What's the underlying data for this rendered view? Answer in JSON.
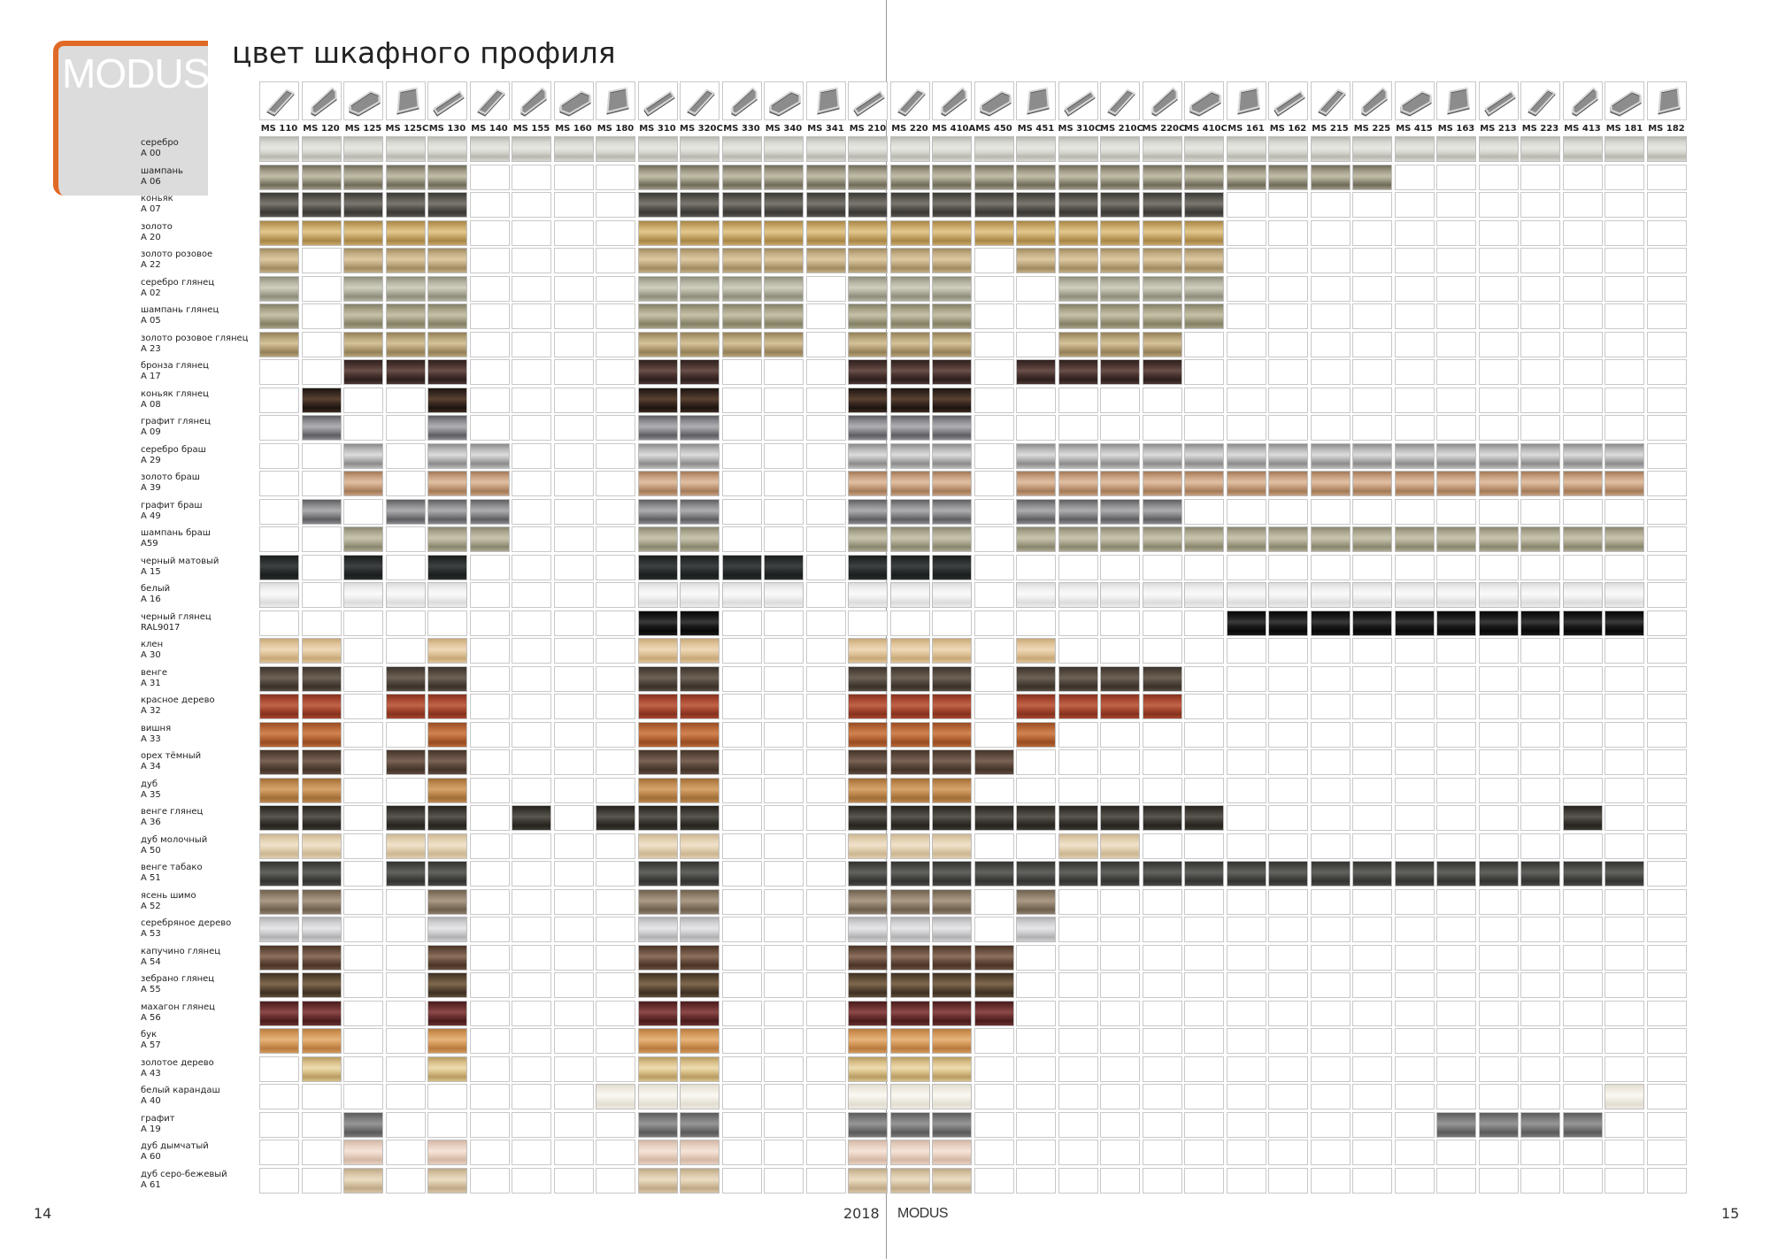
{
  "brand": {
    "logo_text": "MODUS",
    "accent_color": "#e06a25"
  },
  "title": "цвет шкафного профиля",
  "footer": {
    "page_left": "14",
    "page_right": "15",
    "year": "2018",
    "brand": "MODUS"
  },
  "profiles": [
    "MS 110",
    "MS 120",
    "MS 125",
    "MS 125C",
    "MS 130",
    "MS 140",
    "MS 155",
    "MS 160",
    "MS 180",
    "MS 310",
    "MS 320C",
    "MS 330",
    "MS 340",
    "MS 341",
    "MS 210",
    "MS 220",
    "MS 410A",
    "MS 450",
    "MS 451",
    "MS 310C",
    "MS 210C",
    "MS 220C",
    "MS 410C",
    "MS 161",
    "MS 162",
    "MS 215",
    "MS 225",
    "MS 415",
    "MS 163",
    "MS 213",
    "MS 223",
    "MS 413",
    "MS 181",
    "MS 182"
  ],
  "finishes": [
    {
      "name": "серебро",
      "code": "A 00",
      "swatch": [
        "#d8d8d2",
        "#b8b8b0",
        "#e8e8e2"
      ],
      "avail": "1111111111111111111111111111111111"
    },
    {
      "name": "шампань",
      "code": "A 06",
      "swatch": [
        "#9e9a86",
        "#6e6a58",
        "#c2bea8"
      ],
      "avail": "1111100001111111111111111110000000"
    },
    {
      "name": "коньяк",
      "code": "A 07",
      "swatch": [
        "#5a5650",
        "#3a3834",
        "#7a7670"
      ],
      "avail": "1111100001111111111111100000000000"
    },
    {
      "name": "золото",
      "code": "A 20",
      "swatch": [
        "#c9a86a",
        "#a68646",
        "#e2c88e"
      ],
      "avail": "1111100001111111111111100000000000"
    },
    {
      "name": "золото розовое",
      "code": "A 22",
      "swatch": [
        "#c4ae84",
        "#a08a62",
        "#dcc8a2"
      ],
      "avail": "1011100001111111101111100000000000"
    },
    {
      "name": "серебро глянец",
      "code": "A 02",
      "swatch": [
        "#b4b2a0",
        "#8e8c7a",
        "#d0cebe"
      ],
      "avail": "1011100001111011100111100000000000"
    },
    {
      "name": "шампань глянец",
      "code": "A 05",
      "swatch": [
        "#a8a288",
        "#828066",
        "#c6c2a8"
      ],
      "avail": "1011100001111011100111100000000000"
    },
    {
      "name": "золото розовое глянец",
      "code": "A 23",
      "swatch": [
        "#b8a47a",
        "#948056",
        "#d4c29a"
      ],
      "avail": "1011100001111011100111000000000000"
    },
    {
      "name": "бронза глянец",
      "code": "A 17",
      "swatch": [
        "#4a3430",
        "#2e201e",
        "#6a504a"
      ],
      "avail": "0011100001100011101111000000000000"
    },
    {
      "name": "коньяк глянец",
      "code": "A 08",
      "swatch": [
        "#3a2a22",
        "#1e1410",
        "#5a4232"
      ],
      "avail": "0100100001100011100000000000000000"
    },
    {
      "name": "графит глянец",
      "code": "A 09",
      "swatch": [
        "#8c8c90",
        "#5c5c62",
        "#b0b0b4"
      ],
      "avail": "0100100001100011100000000000000000"
    },
    {
      "name": "серебро браш",
      "code": "A 29",
      "swatch": [
        "#b8b8b8",
        "#8a8a8a",
        "#dcdcdc"
      ],
      "avail": "0010110001100011101111111111111110"
    },
    {
      "name": "золото браш",
      "code": "A 39",
      "swatch": [
        "#c8a080",
        "#a27a58",
        "#e0c0a2"
      ],
      "avail": "0010110001100011101111111111111110"
    },
    {
      "name": "графит браш",
      "code": "A 49",
      "swatch": [
        "#8a8a8c",
        "#5e5e62",
        "#aeaeb0"
      ],
      "avail": "0101110001100011101111000000000000"
    },
    {
      "name": "шампань браш",
      "code": "A59",
      "swatch": [
        "#aeaa92",
        "#8a866e",
        "#c8c4ae"
      ],
      "avail": "0010110001100011101111111111111110"
    },
    {
      "name": "черный матовый",
      "code": "A 15",
      "swatch": [
        "#2a2e2e",
        "#1a1e1e",
        "#3e4242"
      ],
      "avail": "1010100001111011100000000000000000"
    },
    {
      "name": "белый",
      "code": "A 16",
      "swatch": [
        "#eeeeee",
        "#dcdcdc",
        "#fafafa"
      ],
      "avail": "1011100001111011101111111111111110"
    },
    {
      "name": "черный глянец",
      "code": "RAL9017",
      "swatch": [
        "#1a1a1a",
        "#080808",
        "#3a3a3a"
      ],
      "avail": "0000000001100000000000011111111110"
    },
    {
      "name": "клен",
      "code": "A 30",
      "swatch": [
        "#e0c49a",
        "#c8a878",
        "#eed8b6"
      ],
      "avail": "1100100001100011101000000000000000"
    },
    {
      "name": "венге",
      "code": "A 31",
      "swatch": [
        "#544a40",
        "#3a322a",
        "#6e6256"
      ],
      "avail": "1101100001100011101111000000000000"
    },
    {
      "name": "красное дерево",
      "code": "A 32",
      "swatch": [
        "#a84830",
        "#86321e",
        "#c0644a"
      ],
      "avail": "1101100001100011101111000000000000"
    },
    {
      "name": "вишня",
      "code": "A 33",
      "swatch": [
        "#b86838",
        "#984c22",
        "#d08452"
      ],
      "avail": "1100100001100011101000000000000000"
    },
    {
      "name": "орех тёмный",
      "code": "A 34",
      "swatch": [
        "#5e4a3e",
        "#443428",
        "#7a6456"
      ],
      "avail": "1101100001100011110000000000000000"
    },
    {
      "name": "дуб",
      "code": "A 35",
      "swatch": [
        "#c08a50",
        "#a06e38",
        "#d6a46c"
      ],
      "avail": "1100100001100011100000000000000000"
    },
    {
      "name": "венге глянец",
      "code": "A 36",
      "swatch": [
        "#3e3a34",
        "#26221e",
        "#5a5650"
      ],
      "avail": "1101101011100011111111100000000100"
    },
    {
      "name": "дуб молочный",
      "code": "A 50",
      "swatch": [
        "#e2cfb0",
        "#ccb692",
        "#f0e2ca"
      ],
      "avail": "1101100001100011100110000000000000"
    },
    {
      "name": "венге табако",
      "code": "A 51",
      "swatch": [
        "#4a4a46",
        "#323230",
        "#626260"
      ],
      "avail": "1101100001100011111111111111111110"
    },
    {
      "name": "ясень шимо",
      "code": "A 52",
      "swatch": [
        "#8e7e6a",
        "#6e604e",
        "#aa9a86"
      ],
      "avail": "1100100001100011101000000000000000"
    },
    {
      "name": "серебряное дерево",
      "code": "A 53",
      "swatch": [
        "#d0d0d2",
        "#b0b0b2",
        "#e6e6e8"
      ],
      "avail": "1100100001100011101000000000000000"
    },
    {
      "name": "капучино глянец",
      "code": "A 54",
      "swatch": [
        "#6a5040",
        "#4a3426",
        "#8e705c"
      ],
      "avail": "1100100001100011110000000000000000"
    },
    {
      "name": "зебрано глянец",
      "code": "A 55",
      "swatch": [
        "#5e4c38",
        "#3e3022",
        "#80684e"
      ],
      "avail": "1100100001100011110000000000000000"
    },
    {
      "name": "махагон глянец",
      "code": "A 56",
      "swatch": [
        "#6a3030",
        "#4a1c1c",
        "#8c4a48"
      ],
      "avail": "1100100001100011110000000000000000"
    },
    {
      "name": "бук",
      "code": "A 57",
      "swatch": [
        "#d4985a",
        "#b87c40",
        "#e6b47c"
      ],
      "avail": "1100100001100011100000000000000000"
    },
    {
      "name": "золотое дерево",
      "code": "A 43",
      "swatch": [
        "#d8c08a",
        "#b89c62",
        "#eedcb0"
      ],
      "avail": "0100100001100011100000000000000000"
    },
    {
      "name": "белый карандаш",
      "code": "A 40",
      "swatch": [
        "#f0ece2",
        "#e2ddd0",
        "#faf8f2"
      ],
      "avail": "0000000011100011100000000000000010"
    },
    {
      "name": "графит",
      "code": "A 19",
      "swatch": [
        "#7a7a7a",
        "#5a5a5a",
        "#969696"
      ],
      "avail": "0010000001100011100000000000111100"
    },
    {
      "name": "дуб дымчатый",
      "code": "A 60",
      "swatch": [
        "#e8d0c0",
        "#d2b8a6",
        "#f4e4d8"
      ],
      "avail": "0010100001100011100000000000000000"
    },
    {
      "name": "дуб серо-бежевый",
      "code": "A 61",
      "swatch": [
        "#d8c6a6",
        "#bea886",
        "#ebdcc2"
      ],
      "avail": "0010100001100011100000000000000000"
    }
  ]
}
